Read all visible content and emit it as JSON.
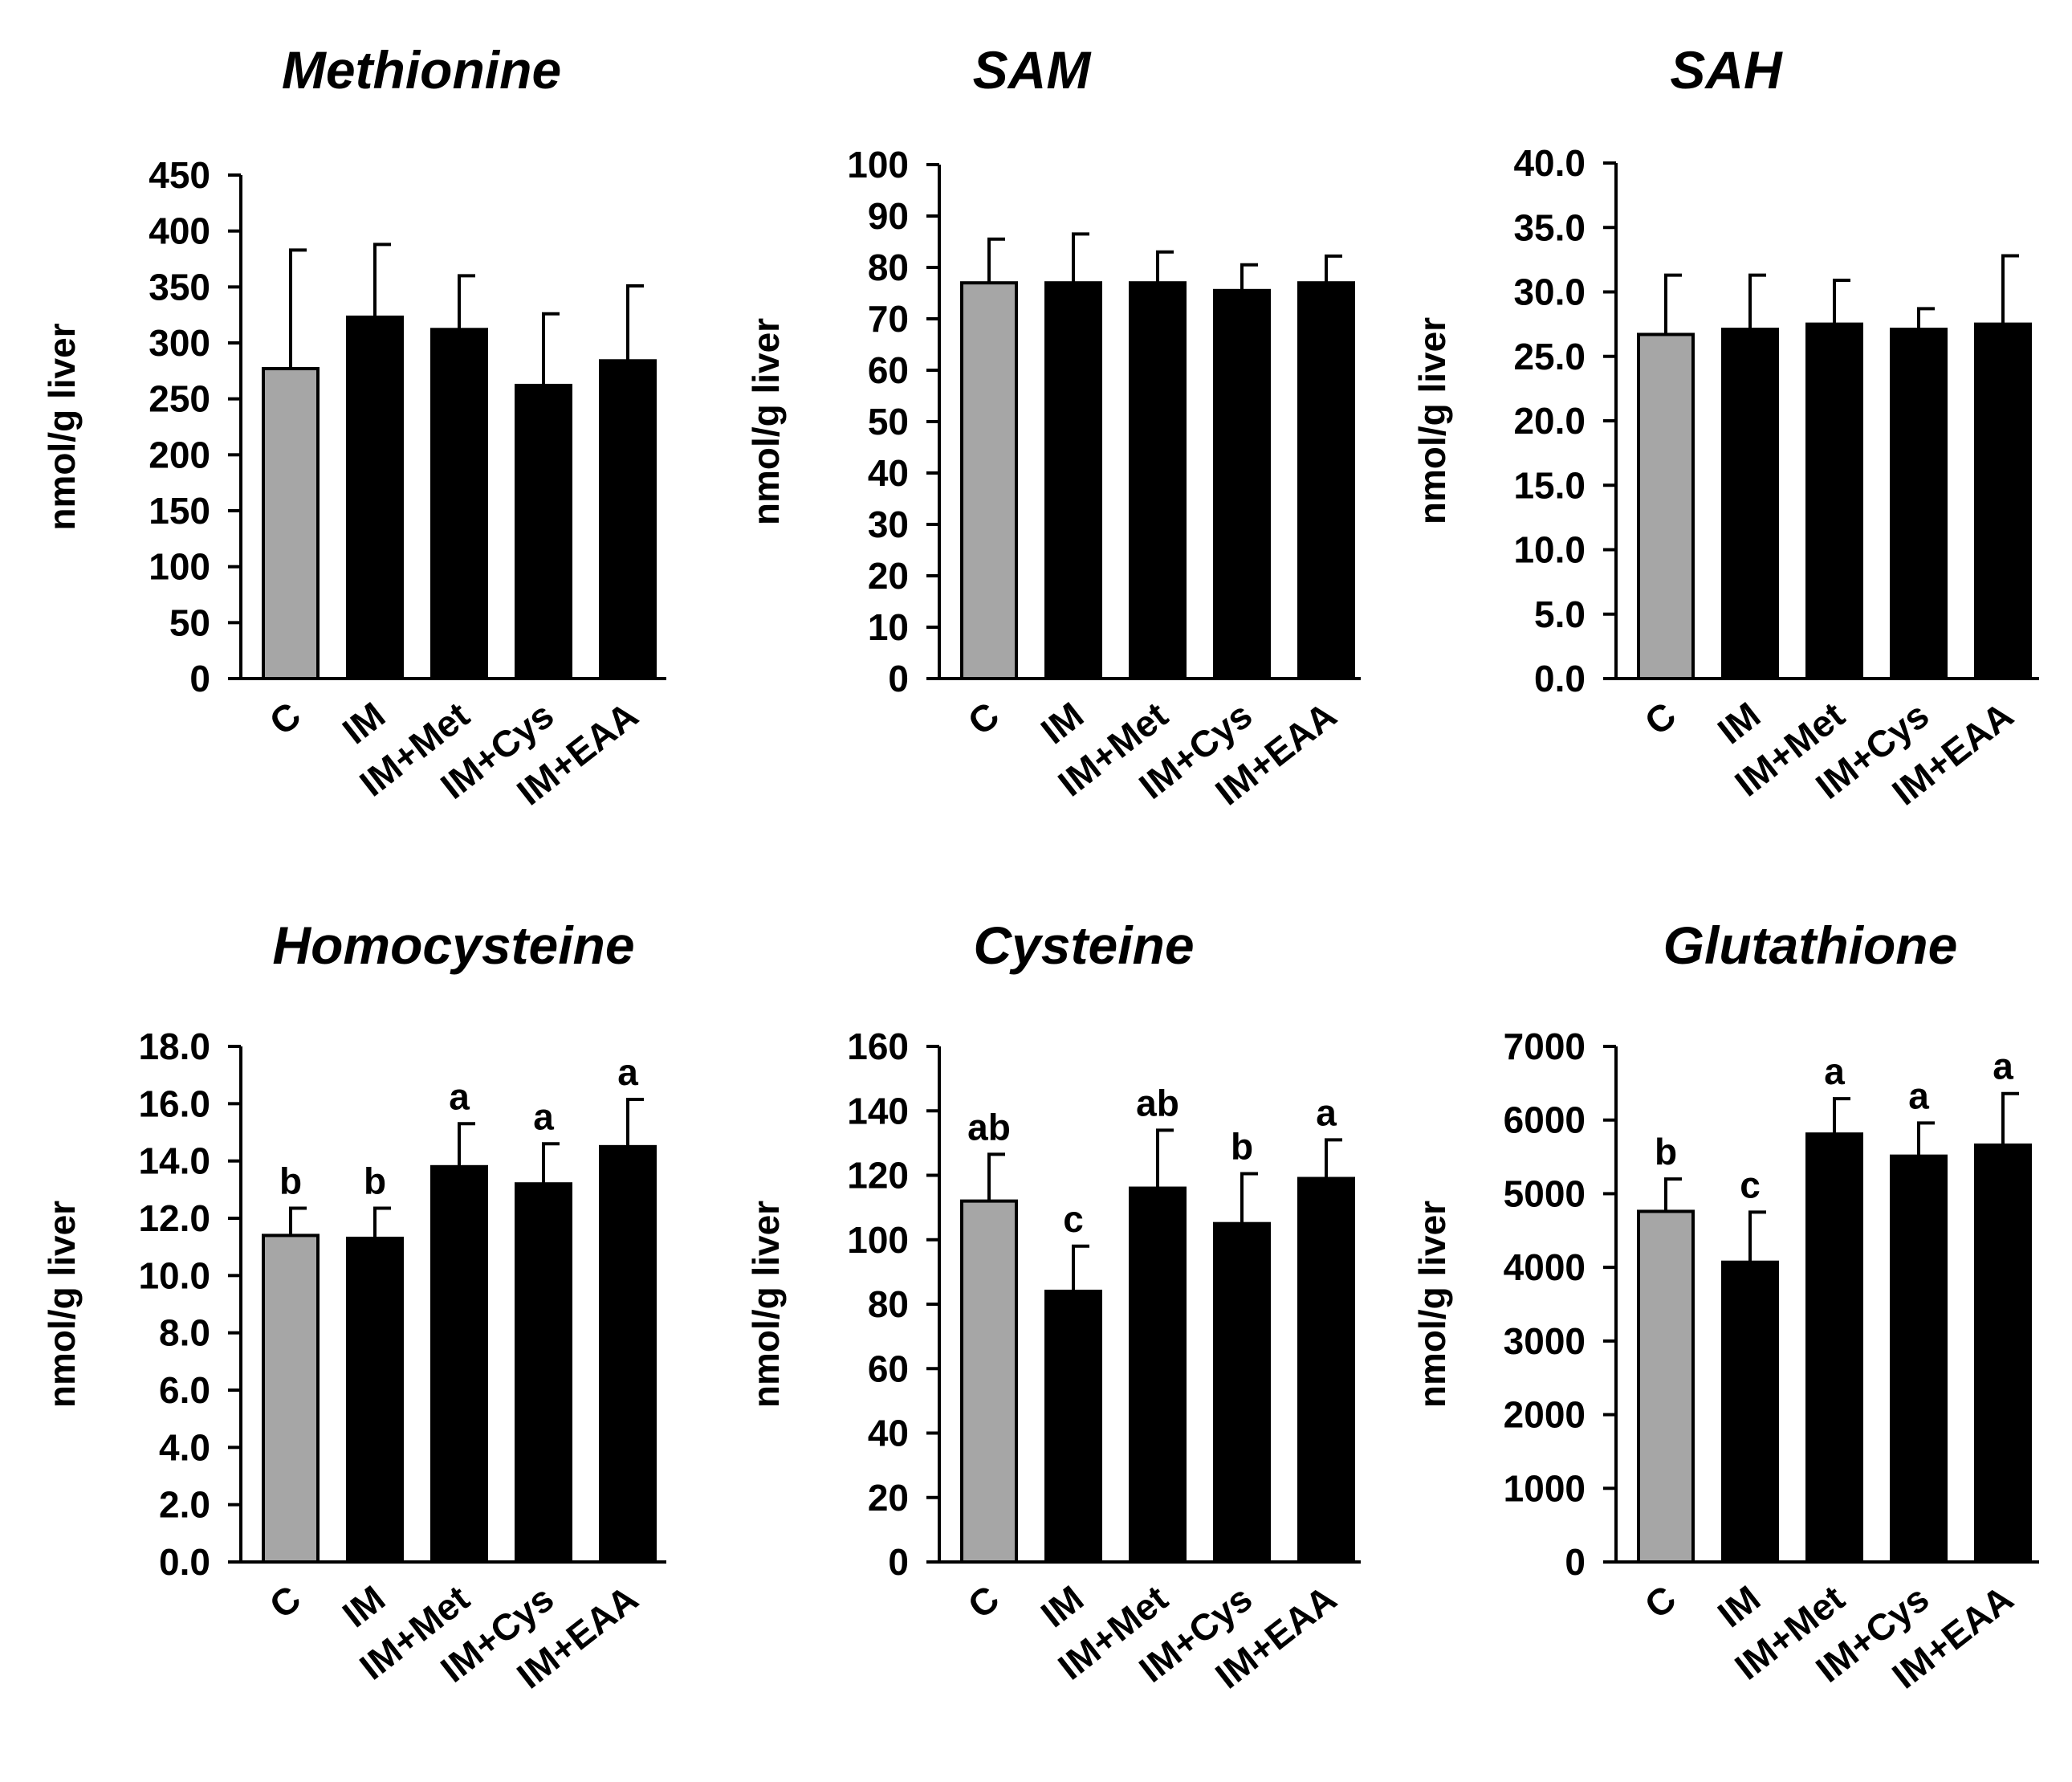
{
  "colors": {
    "control_bar": "#a6a6a6",
    "treatment_bar": "#000000",
    "axis": "#000000"
  },
  "chart_data": [
    {
      "type": "bar",
      "title": "Methionine",
      "ylabel": "nmol/g liver",
      "categories": [
        "C",
        "IM",
        "IM+Met",
        "IM+Cys",
        "IM+EAA"
      ],
      "values": [
        277,
        323,
        312,
        262,
        284
      ],
      "errors": [
        106,
        65,
        48,
        64,
        67
      ],
      "significance": [],
      "ylim": [
        0,
        450
      ],
      "yticks": [
        "0",
        "50",
        "100",
        "150",
        "200",
        "250",
        "300",
        "350",
        "400",
        "450"
      ]
    },
    {
      "type": "bar",
      "title": "SAM",
      "ylabel": "nmol/g liver",
      "categories": [
        "C",
        "IM",
        "IM+Met",
        "IM+Cys",
        "IM+EAA"
      ],
      "values": [
        77,
        77,
        77,
        75.5,
        77
      ],
      "errors": [
        8.5,
        9.5,
        6,
        5,
        5.2
      ],
      "significance": [],
      "ylim": [
        0,
        100
      ],
      "yticks": [
        "0",
        "10",
        "20",
        "30",
        "40",
        "50",
        "60",
        "70",
        "80",
        "90",
        "100"
      ]
    },
    {
      "type": "bar",
      "title": "SAH",
      "ylabel": "nmol/g liver",
      "categories": [
        "C",
        "IM",
        "IM+Met",
        "IM+Cys",
        "IM+EAA"
      ],
      "values": [
        26.7,
        27.1,
        27.5,
        27.1,
        27.5
      ],
      "errors": [
        4.6,
        4.2,
        3.4,
        1.6,
        5.3
      ],
      "significance": [],
      "ylim": [
        0,
        40
      ],
      "yticks": [
        "0.0",
        "5.0",
        "10.0",
        "15.0",
        "20.0",
        "25.0",
        "30.0",
        "35.0",
        "40.0"
      ]
    },
    {
      "type": "bar",
      "title": "Homocysteine",
      "ylabel": "nmol/g liver",
      "categories": [
        "C",
        "IM",
        "IM+Met",
        "IM+Cys",
        "IM+EAA"
      ],
      "values": [
        11.4,
        11.3,
        13.8,
        13.2,
        14.5
      ],
      "errors": [
        0.95,
        1.05,
        1.5,
        1.4,
        1.65
      ],
      "significance": [
        "b",
        "b",
        "a",
        "a",
        "a"
      ],
      "ylim": [
        0,
        18
      ],
      "yticks": [
        "0.0",
        "2.0",
        "4.0",
        "6.0",
        "8.0",
        "10.0",
        "12.0",
        "14.0",
        "16.0",
        "18.0"
      ]
    },
    {
      "type": "bar",
      "title": "Cysteine",
      "ylabel": "nmol/g liver",
      "categories": [
        "C",
        "IM",
        "IM+Met",
        "IM+Cys",
        "IM+EAA"
      ],
      "values": [
        112,
        84,
        116,
        105,
        119
      ],
      "errors": [
        14.5,
        14,
        18,
        15.5,
        12
      ],
      "significance": [
        "ab",
        "c",
        "ab",
        "b",
        "a"
      ],
      "ylim": [
        0,
        160
      ],
      "yticks": [
        "0",
        "20",
        "40",
        "60",
        "80",
        "100",
        "120",
        "140",
        "160"
      ]
    },
    {
      "type": "bar",
      "title": "Glutathione",
      "ylabel": "nmol/g liver",
      "categories": [
        "C",
        "IM",
        "IM+Met",
        "IM+Cys",
        "IM+EAA"
      ],
      "values": [
        4760,
        4070,
        5810,
        5510,
        5660
      ],
      "errors": [
        440,
        680,
        480,
        450,
        700
      ],
      "significance": [
        "b",
        "c",
        "a",
        "a",
        "a"
      ],
      "ylim": [
        0,
        7000
      ],
      "yticks": [
        "0",
        "1000",
        "2000",
        "3000",
        "4000",
        "5000",
        "6000",
        "7000"
      ]
    }
  ]
}
